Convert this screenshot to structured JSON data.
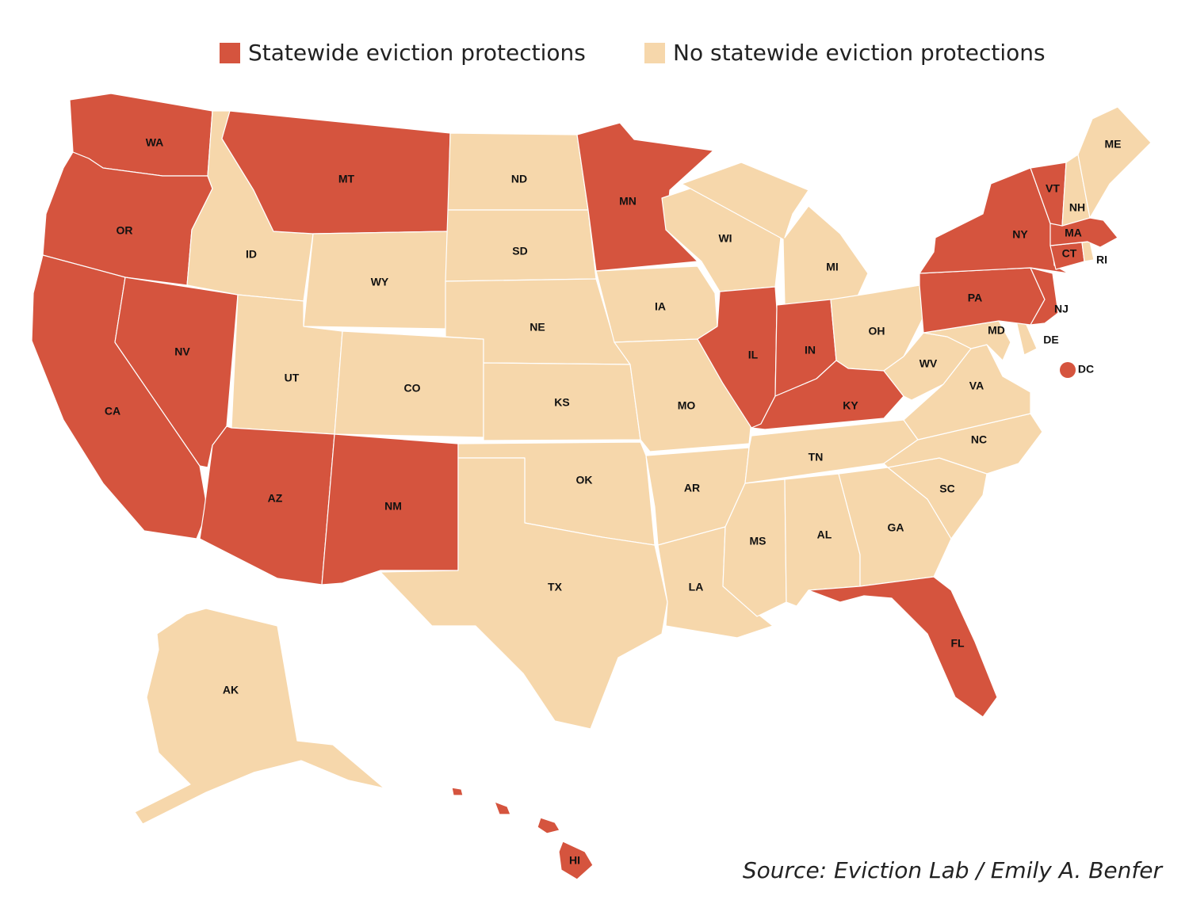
{
  "legend": {
    "protected_label": "Statewide eviction protections",
    "unprotected_label": "No statewide eviction protections"
  },
  "colors": {
    "protected": "#d5543e",
    "unprotected": "#f6d7ab",
    "border": "#ffffff"
  },
  "source_text": "Source:  Eviction Lab / Emily A. Benfer",
  "states": [
    {
      "abbr": "WA",
      "protected": true
    },
    {
      "abbr": "OR",
      "protected": true
    },
    {
      "abbr": "CA",
      "protected": true
    },
    {
      "abbr": "NV",
      "protected": true
    },
    {
      "abbr": "ID",
      "protected": false
    },
    {
      "abbr": "MT",
      "protected": true
    },
    {
      "abbr": "WY",
      "protected": false
    },
    {
      "abbr": "UT",
      "protected": false
    },
    {
      "abbr": "AZ",
      "protected": true
    },
    {
      "abbr": "CO",
      "protected": false
    },
    {
      "abbr": "NM",
      "protected": true
    },
    {
      "abbr": "ND",
      "protected": false
    },
    {
      "abbr": "SD",
      "protected": false
    },
    {
      "abbr": "NE",
      "protected": false
    },
    {
      "abbr": "KS",
      "protected": false
    },
    {
      "abbr": "OK",
      "protected": false
    },
    {
      "abbr": "TX",
      "protected": false
    },
    {
      "abbr": "MN",
      "protected": true
    },
    {
      "abbr": "IA",
      "protected": false
    },
    {
      "abbr": "MO",
      "protected": false
    },
    {
      "abbr": "AR",
      "protected": false
    },
    {
      "abbr": "LA",
      "protected": false
    },
    {
      "abbr": "WI",
      "protected": false
    },
    {
      "abbr": "IL",
      "protected": true
    },
    {
      "abbr": "MI",
      "protected": false
    },
    {
      "abbr": "IN",
      "protected": true
    },
    {
      "abbr": "OH",
      "protected": false
    },
    {
      "abbr": "KY",
      "protected": true
    },
    {
      "abbr": "TN",
      "protected": false
    },
    {
      "abbr": "MS",
      "protected": false
    },
    {
      "abbr": "AL",
      "protected": false
    },
    {
      "abbr": "GA",
      "protected": false
    },
    {
      "abbr": "FL",
      "protected": true
    },
    {
      "abbr": "SC",
      "protected": false
    },
    {
      "abbr": "NC",
      "protected": false
    },
    {
      "abbr": "VA",
      "protected": false
    },
    {
      "abbr": "WV",
      "protected": false
    },
    {
      "abbr": "MD",
      "protected": false
    },
    {
      "abbr": "DE",
      "protected": false
    },
    {
      "abbr": "PA",
      "protected": true
    },
    {
      "abbr": "NJ",
      "protected": true
    },
    {
      "abbr": "NY",
      "protected": true
    },
    {
      "abbr": "CT",
      "protected": true
    },
    {
      "abbr": "RI",
      "protected": false
    },
    {
      "abbr": "MA",
      "protected": true
    },
    {
      "abbr": "VT",
      "protected": true
    },
    {
      "abbr": "NH",
      "protected": false
    },
    {
      "abbr": "ME",
      "protected": false
    },
    {
      "abbr": "AK",
      "protected": false
    },
    {
      "abbr": "HI",
      "protected": true
    },
    {
      "abbr": "DC",
      "protected": true
    }
  ]
}
